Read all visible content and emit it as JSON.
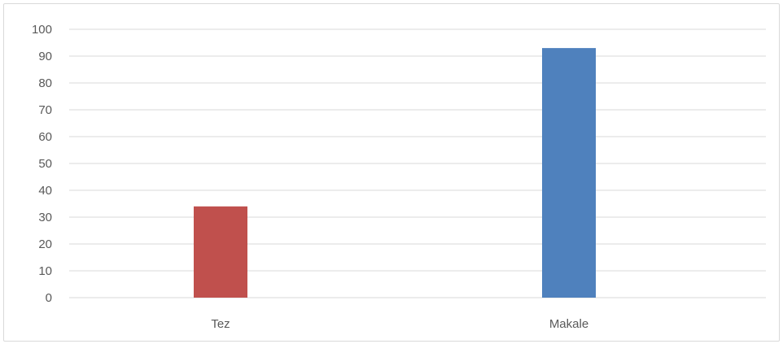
{
  "chart_data": {
    "type": "bar",
    "categories": [
      "Tez",
      "Makale"
    ],
    "values": [
      34,
      93
    ],
    "bar_colors": [
      "#C0504D",
      "#4F81BD"
    ],
    "ylim": [
      0,
      100
    ],
    "yticks": [
      0,
      10,
      20,
      30,
      40,
      50,
      60,
      70,
      80,
      90,
      100
    ],
    "grid": true,
    "title": "",
    "xlabel": "",
    "ylabel": ""
  },
  "colors": {
    "gridline": "#d9d9d9",
    "axis_text": "#595959"
  }
}
